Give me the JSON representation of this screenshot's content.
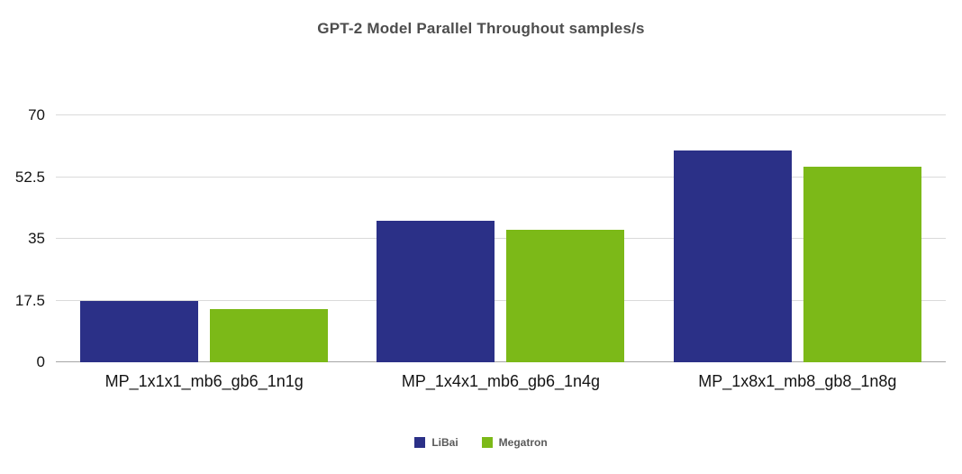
{
  "chart_data": {
    "type": "bar",
    "title": "GPT-2 Model Parallel Throughout samples/s",
    "categories": [
      "MP_1x1x1_mb6_gb6_1n1g",
      "MP_1x4x1_mb6_gb6_1n4g",
      "MP_1x8x1_mb8_gb8_1n8g"
    ],
    "series": [
      {
        "name": "LiBai",
        "color": "#2b3087",
        "values": [
          17.5,
          40.0,
          60.0
        ]
      },
      {
        "name": "Megatron",
        "color": "#7cb918",
        "values": [
          15.0,
          37.5,
          55.5
        ]
      }
    ],
    "yticks": [
      0,
      17.5,
      35,
      52.5,
      70
    ],
    "ytick_labels": [
      "0",
      "17.5",
      "35",
      "52.5",
      "70"
    ],
    "ylim": [
      0,
      70
    ],
    "grid": true,
    "legend_position": "bottom"
  }
}
